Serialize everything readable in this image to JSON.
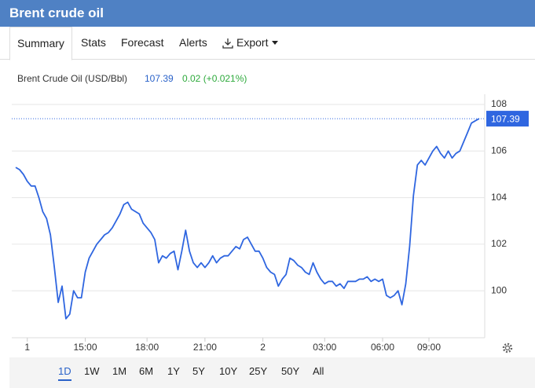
{
  "header": {
    "title": "Brent crude oil"
  },
  "tabs": [
    "Summary",
    "Stats",
    "Forecast",
    "Alerts",
    "Export"
  ],
  "ranges": [
    "1D",
    "1W",
    "1M",
    "6M",
    "1Y",
    "5Y",
    "10Y",
    "25Y",
    "50Y",
    "All"
  ],
  "chart_data": {
    "type": "line",
    "series": [
      {
        "name": "Brent Crude Oil (USD/Bbl)",
        "color": "#2f66e0",
        "values": [
          105.3,
          105.2,
          105.0,
          104.7,
          104.5,
          104.5,
          104.0,
          103.4,
          103.1,
          102.4,
          101.0,
          99.5,
          100.2,
          98.8,
          99.0,
          100.0,
          99.7,
          99.7,
          100.8,
          101.4,
          101.7,
          102.0,
          102.2,
          102.4,
          102.5,
          102.7,
          103.0,
          103.3,
          103.7,
          103.8,
          103.5,
          103.4,
          103.3,
          102.9,
          102.7,
          102.5,
          102.2,
          101.2,
          101.5,
          101.4,
          101.6,
          101.7,
          100.9,
          101.7,
          102.6,
          101.7,
          101.2,
          101.0,
          101.2,
          101.0,
          101.2,
          101.5,
          101.2,
          101.4,
          101.5,
          101.5,
          101.7,
          101.9,
          101.8,
          102.2,
          102.3,
          102.0,
          101.7,
          101.7,
          101.4,
          101.0,
          100.8,
          100.7,
          100.2,
          100.5,
          100.7,
          101.4,
          101.3,
          101.1,
          101.0,
          100.8,
          100.7,
          101.2,
          100.8,
          100.5,
          100.3,
          100.4,
          100.4,
          100.2,
          100.3,
          100.1,
          100.4,
          100.4,
          100.4,
          100.5,
          100.5,
          100.6,
          100.4,
          100.5,
          100.4,
          100.5,
          99.8,
          99.7,
          99.8,
          100.0,
          99.4,
          100.3,
          101.9,
          104.1,
          105.4,
          105.6,
          105.4,
          105.7,
          106.0,
          106.2,
          105.9,
          105.7,
          106.0,
          105.7,
          105.9,
          106.0,
          106.4,
          106.8,
          107.2,
          107.3,
          107.39
        ]
      }
    ],
    "last_price": 107.39,
    "change": "0.02 (+0.021%)",
    "xlim": [
      0,
      119
    ],
    "xticks": [
      {
        "value": 3,
        "label": "1"
      },
      {
        "value": 18,
        "label": "15:00"
      },
      {
        "value": 34,
        "label": "18:00"
      },
      {
        "value": 49,
        "label": "21:00"
      },
      {
        "value": 64,
        "label": "2"
      },
      {
        "value": 80,
        "label": "03:00"
      },
      {
        "value": 95,
        "label": "06:00"
      },
      {
        "value": 107,
        "label": "09:00"
      }
    ],
    "ylim": [
      98,
      108
    ],
    "yticks": [
      100,
      102,
      104,
      106,
      108
    ],
    "grid": true
  }
}
